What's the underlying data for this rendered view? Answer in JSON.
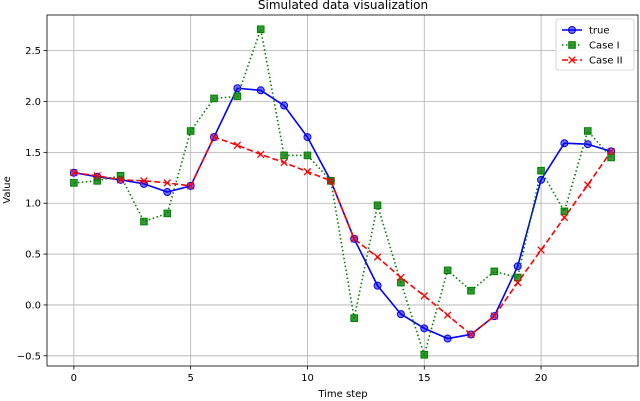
{
  "chart_data": {
    "type": "line",
    "title": "Simulated data visualization",
    "xlabel": "Time step",
    "ylabel": "Value",
    "xlim": [
      -1.15,
      24.15
    ],
    "ylim": [
      -0.6,
      2.85
    ],
    "xticks": [
      0,
      5,
      10,
      15,
      20
    ],
    "yticks": [
      -0.5,
      0.0,
      0.5,
      1.0,
      1.5,
      2.0,
      2.5
    ],
    "ytick_labels": [
      "−0.5",
      "0.0",
      "0.5",
      "1.0",
      "1.5",
      "2.0",
      "2.5"
    ],
    "grid": true,
    "legend_position": "top-right",
    "x": [
      0,
      1,
      2,
      3,
      4,
      5,
      6,
      7,
      8,
      9,
      10,
      11,
      12,
      13,
      14,
      15,
      16,
      17,
      18,
      19,
      20,
      21,
      22,
      23
    ],
    "series": [
      {
        "name": "true",
        "color": "#0000ff",
        "line_style": "solid",
        "marker": "circle",
        "values": [
          1.3,
          1.26,
          1.23,
          1.19,
          1.11,
          1.17,
          1.65,
          2.13,
          2.11,
          1.96,
          1.65,
          1.22,
          0.65,
          0.19,
          -0.09,
          -0.23,
          -0.33,
          -0.29,
          -0.11,
          0.38,
          1.23,
          1.59,
          1.58,
          1.51
        ]
      },
      {
        "name": "Case I",
        "color": "#008000",
        "line_style": "dotted",
        "marker": "square",
        "values": [
          1.2,
          1.22,
          1.27,
          0.82,
          0.9,
          1.71,
          2.03,
          2.05,
          2.71,
          1.47,
          1.47,
          1.22,
          -0.13,
          0.98,
          0.22,
          -0.49,
          0.34,
          0.14,
          0.33,
          0.27,
          1.32,
          0.92,
          1.71,
          1.45
        ]
      },
      {
        "name": "Case II",
        "color": "#ff0000",
        "line_style": "dashed",
        "marker": "x",
        "values": [
          1.3,
          1.27,
          1.23,
          1.22,
          1.2,
          1.17,
          1.65,
          1.57,
          1.48,
          1.4,
          1.31,
          1.22,
          0.65,
          0.47,
          0.27,
          0.09,
          -0.1,
          -0.29,
          -0.11,
          0.22,
          0.54,
          0.86,
          1.18,
          1.51
        ]
      }
    ]
  }
}
